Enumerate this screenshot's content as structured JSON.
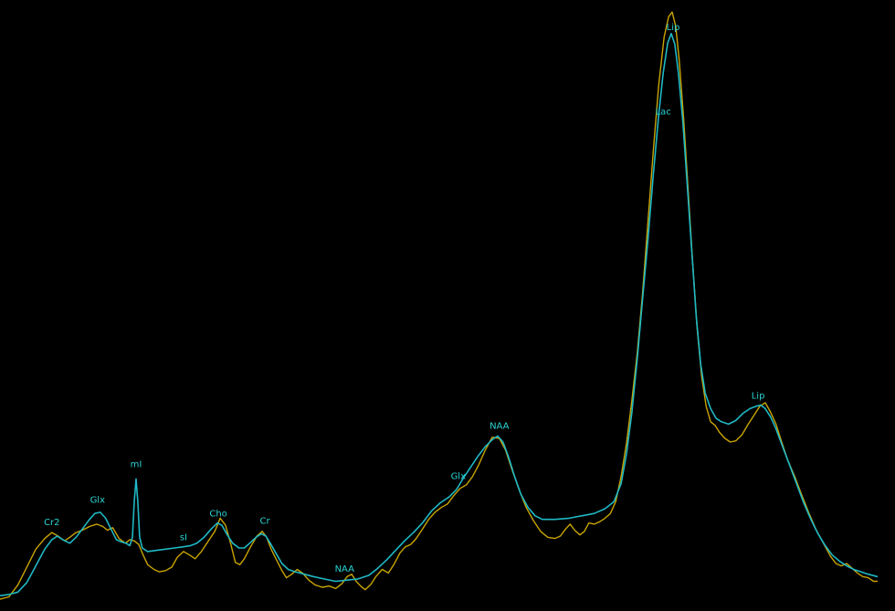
{
  "theme": {
    "background": "#000000",
    "fit_color": "#1fb8c4",
    "spectrum_color": "#c9a400",
    "label_color": "#2cd3d3"
  },
  "chart_data": {
    "type": "line",
    "title": "",
    "xlabel": "",
    "ylabel": "",
    "xlim": [
      0,
      1000
    ],
    "ylim": [
      0,
      1000
    ],
    "grid": false,
    "legend": "none",
    "series": [
      {
        "role": "measured",
        "color": "#c9a400",
        "points": [
          [
            0,
            6
          ],
          [
            10,
            10
          ],
          [
            20,
            30
          ],
          [
            30,
            60
          ],
          [
            40,
            90
          ],
          [
            50,
            108
          ],
          [
            58,
            118
          ],
          [
            65,
            112
          ],
          [
            72,
            104
          ],
          [
            78,
            110
          ],
          [
            85,
            118
          ],
          [
            92,
            122
          ],
          [
            100,
            128
          ],
          [
            108,
            132
          ],
          [
            115,
            128
          ],
          [
            120,
            122
          ],
          [
            126,
            126
          ],
          [
            133,
            108
          ],
          [
            140,
            100
          ],
          [
            145,
            106
          ],
          [
            150,
            104
          ],
          [
            155,
            98
          ],
          [
            160,
            80
          ],
          [
            165,
            64
          ],
          [
            172,
            56
          ],
          [
            178,
            52
          ],
          [
            185,
            54
          ],
          [
            192,
            60
          ],
          [
            198,
            76
          ],
          [
            205,
            86
          ],
          [
            212,
            80
          ],
          [
            218,
            74
          ],
          [
            225,
            86
          ],
          [
            232,
            102
          ],
          [
            240,
            120
          ],
          [
            246,
            142
          ],
          [
            252,
            130
          ],
          [
            258,
            98
          ],
          [
            263,
            68
          ],
          [
            268,
            64
          ],
          [
            273,
            74
          ],
          [
            280,
            94
          ],
          [
            287,
            112
          ],
          [
            293,
            120
          ],
          [
            298,
            110
          ],
          [
            303,
            90
          ],
          [
            309,
            72
          ],
          [
            315,
            54
          ],
          [
            320,
            42
          ],
          [
            326,
            48
          ],
          [
            332,
            56
          ],
          [
            338,
            50
          ],
          [
            345,
            38
          ],
          [
            352,
            30
          ],
          [
            360,
            26
          ],
          [
            368,
            28
          ],
          [
            375,
            24
          ],
          [
            382,
            32
          ],
          [
            388,
            44
          ],
          [
            393,
            48
          ],
          [
            398,
            36
          ],
          [
            403,
            28
          ],
          [
            408,
            22
          ],
          [
            414,
            30
          ],
          [
            420,
            44
          ],
          [
            427,
            56
          ],
          [
            434,
            50
          ],
          [
            440,
            64
          ],
          [
            447,
            84
          ],
          [
            453,
            94
          ],
          [
            459,
            98
          ],
          [
            465,
            108
          ],
          [
            472,
            124
          ],
          [
            479,
            140
          ],
          [
            486,
            152
          ],
          [
            493,
            160
          ],
          [
            500,
            166
          ],
          [
            507,
            180
          ],
          [
            514,
            192
          ],
          [
            521,
            198
          ],
          [
            528,
            212
          ],
          [
            535,
            232
          ],
          [
            542,
            256
          ],
          [
            550,
            278
          ],
          [
            558,
            276
          ],
          [
            565,
            256
          ],
          [
            572,
            224
          ],
          [
            580,
            190
          ],
          [
            588,
            160
          ],
          [
            596,
            138
          ],
          [
            604,
            120
          ],
          [
            612,
            110
          ],
          [
            620,
            108
          ],
          [
            626,
            112
          ],
          [
            632,
            124
          ],
          [
            637,
            132
          ],
          [
            642,
            122
          ],
          [
            648,
            114
          ],
          [
            653,
            120
          ],
          [
            658,
            134
          ],
          [
            664,
            132
          ],
          [
            670,
            136
          ],
          [
            676,
            142
          ],
          [
            682,
            150
          ],
          [
            688,
            170
          ],
          [
            694,
            212
          ],
          [
            700,
            268
          ],
          [
            706,
            340
          ],
          [
            712,
            420
          ],
          [
            718,
            520
          ],
          [
            724,
            640
          ],
          [
            730,
            760
          ],
          [
            736,
            870
          ],
          [
            742,
            950
          ],
          [
            747,
            984
          ],
          [
            751,
            992
          ],
          [
            755,
            968
          ],
          [
            759,
            910
          ],
          [
            764,
            810
          ],
          [
            769,
            690
          ],
          [
            774,
            570
          ],
          [
            779,
            460
          ],
          [
            784,
            380
          ],
          [
            789,
            330
          ],
          [
            794,
            304
          ],
          [
            799,
            298
          ],
          [
            804,
            286
          ],
          [
            810,
            276
          ],
          [
            816,
            270
          ],
          [
            822,
            272
          ],
          [
            829,
            282
          ],
          [
            836,
            300
          ],
          [
            843,
            316
          ],
          [
            849,
            330
          ],
          [
            855,
            336
          ],
          [
            861,
            320
          ],
          [
            867,
            300
          ],
          [
            873,
            272
          ],
          [
            880,
            240
          ],
          [
            888,
            212
          ],
          [
            896,
            180
          ],
          [
            904,
            150
          ],
          [
            912,
            122
          ],
          [
            920,
            100
          ],
          [
            928,
            78
          ],
          [
            934,
            66
          ],
          [
            940,
            62
          ],
          [
            946,
            66
          ],
          [
            952,
            58
          ],
          [
            958,
            50
          ],
          [
            964,
            44
          ],
          [
            970,
            42
          ],
          [
            976,
            36
          ],
          [
            980,
            36
          ]
        ]
      },
      {
        "role": "fit",
        "color": "#1fb8c4",
        "points": [
          [
            0,
            12
          ],
          [
            10,
            14
          ],
          [
            20,
            18
          ],
          [
            30,
            34
          ],
          [
            40,
            62
          ],
          [
            50,
            90
          ],
          [
            58,
            106
          ],
          [
            64,
            112
          ],
          [
            70,
            106
          ],
          [
            78,
            100
          ],
          [
            85,
            110
          ],
          [
            92,
            124
          ],
          [
            100,
            140
          ],
          [
            106,
            150
          ],
          [
            112,
            152
          ],
          [
            118,
            142
          ],
          [
            124,
            124
          ],
          [
            130,
            106
          ],
          [
            136,
            102
          ],
          [
            141,
            100
          ],
          [
            145,
            96
          ],
          [
            148,
            110
          ],
          [
            150,
            170
          ],
          [
            152,
            208
          ],
          [
            154,
            170
          ],
          [
            156,
            110
          ],
          [
            159,
            92
          ],
          [
            165,
            86
          ],
          [
            175,
            88
          ],
          [
            185,
            90
          ],
          [
            195,
            92
          ],
          [
            205,
            94
          ],
          [
            213,
            96
          ],
          [
            220,
            100
          ],
          [
            228,
            110
          ],
          [
            236,
            124
          ],
          [
            243,
            134
          ],
          [
            248,
            130
          ],
          [
            254,
            114
          ],
          [
            260,
            100
          ],
          [
            267,
            92
          ],
          [
            273,
            92
          ],
          [
            279,
            100
          ],
          [
            286,
            110
          ],
          [
            292,
            116
          ],
          [
            297,
            112
          ],
          [
            302,
            100
          ],
          [
            308,
            84
          ],
          [
            315,
            66
          ],
          [
            322,
            56
          ],
          [
            330,
            52
          ],
          [
            340,
            48
          ],
          [
            350,
            44
          ],
          [
            362,
            40
          ],
          [
            375,
            36
          ],
          [
            388,
            38
          ],
          [
            400,
            40
          ],
          [
            412,
            46
          ],
          [
            422,
            58
          ],
          [
            432,
            72
          ],
          [
            442,
            88
          ],
          [
            452,
            104
          ],
          [
            462,
            118
          ],
          [
            472,
            134
          ],
          [
            482,
            154
          ],
          [
            492,
            168
          ],
          [
            502,
            178
          ],
          [
            510,
            190
          ],
          [
            518,
            210
          ],
          [
            526,
            228
          ],
          [
            534,
            246
          ],
          [
            542,
            262
          ],
          [
            550,
            274
          ],
          [
            556,
            280
          ],
          [
            562,
            270
          ],
          [
            568,
            246
          ],
          [
            575,
            212
          ],
          [
            582,
            182
          ],
          [
            590,
            160
          ],
          [
            598,
            146
          ],
          [
            606,
            140
          ],
          [
            620,
            140
          ],
          [
            636,
            142
          ],
          [
            650,
            146
          ],
          [
            664,
            150
          ],
          [
            676,
            158
          ],
          [
            686,
            170
          ],
          [
            694,
            200
          ],
          [
            700,
            250
          ],
          [
            706,
            320
          ],
          [
            712,
            410
          ],
          [
            718,
            510
          ],
          [
            724,
            610
          ],
          [
            730,
            720
          ],
          [
            736,
            820
          ],
          [
            741,
            890
          ],
          [
            746,
            940
          ],
          [
            750,
            956
          ],
          [
            754,
            938
          ],
          [
            758,
            890
          ],
          [
            763,
            808
          ],
          [
            768,
            700
          ],
          [
            773,
            590
          ],
          [
            778,
            480
          ],
          [
            783,
            400
          ],
          [
            788,
            352
          ],
          [
            794,
            326
          ],
          [
            800,
            310
          ],
          [
            806,
            304
          ],
          [
            814,
            300
          ],
          [
            822,
            306
          ],
          [
            830,
            318
          ],
          [
            838,
            326
          ],
          [
            845,
            330
          ],
          [
            850,
            332
          ],
          [
            855,
            326
          ],
          [
            861,
            312
          ],
          [
            867,
            292
          ],
          [
            874,
            264
          ],
          [
            882,
            232
          ],
          [
            890,
            200
          ],
          [
            898,
            168
          ],
          [
            906,
            140
          ],
          [
            914,
            116
          ],
          [
            922,
            96
          ],
          [
            930,
            80
          ],
          [
            938,
            70
          ],
          [
            946,
            62
          ],
          [
            954,
            56
          ],
          [
            962,
            52
          ],
          [
            970,
            48
          ],
          [
            980,
            44
          ]
        ]
      }
    ],
    "annotations": [
      {
        "text": "Cr2",
        "x": 58,
        "y": 130
      },
      {
        "text": "Glx",
        "x": 109,
        "y": 168
      },
      {
        "text": "mI",
        "x": 152,
        "y": 228
      },
      {
        "text": "sI",
        "x": 205,
        "y": 105
      },
      {
        "text": "Cho",
        "x": 244,
        "y": 145
      },
      {
        "text": "Cr",
        "x": 296,
        "y": 133
      },
      {
        "text": "NAA",
        "x": 385,
        "y": 52
      },
      {
        "text": "Glx",
        "x": 512,
        "y": 208
      },
      {
        "text": "NAA",
        "x": 558,
        "y": 292
      },
      {
        "text": "Lac",
        "x": 741,
        "y": 820
      },
      {
        "text": "Lip",
        "x": 752,
        "y": 962
      },
      {
        "text": "Lip",
        "x": 847,
        "y": 343
      }
    ]
  }
}
